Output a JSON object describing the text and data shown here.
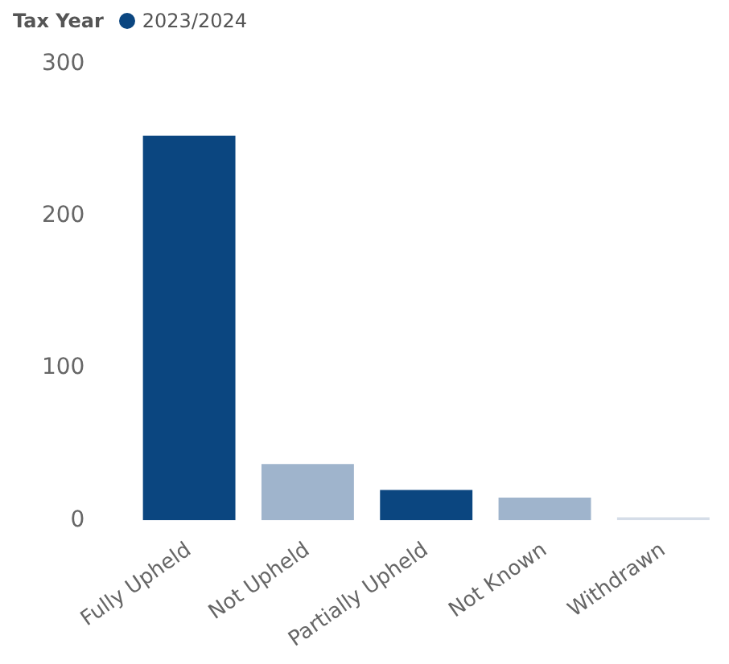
{
  "chart_data": {
    "type": "bar",
    "legend_title": "Tax Year",
    "categories": [
      "Fully Upheld",
      "Not Upheld",
      "Partially Upheld",
      "Not Known",
      "Withdrawn"
    ],
    "series": [
      {
        "name": "2023/2024",
        "color": "#0b4680",
        "colors": [
          "#0b4680",
          "#9fb4cc",
          "#0b4680",
          "#9fb4cc",
          "#d5dde8"
        ],
        "values": [
          253,
          37,
          20,
          15,
          2
        ]
      }
    ],
    "ylim": [
      0,
      300
    ],
    "yticks": [
      0,
      100,
      200,
      300
    ],
    "grid": false,
    "legend": "top left"
  }
}
